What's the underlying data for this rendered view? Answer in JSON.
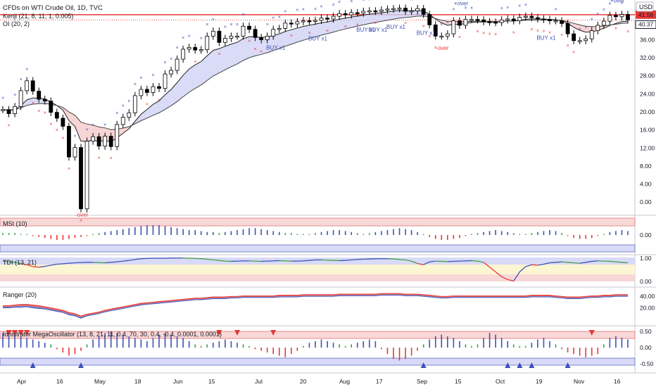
{
  "header": {
    "title": "CFDs on WTI Crude Oil, 1D, TVC",
    "indicator_1": "Kenji (21, 8, 11, 1, 0.005)",
    "indicator_2": "OI (20, 2)",
    "currency": "USD"
  },
  "chart_data": [
    {
      "type": "candlestick",
      "pane": "price",
      "ylim": [
        -2,
        42
      ],
      "y_ticks": [
        "0.00",
        "4.00",
        "8.00",
        "12.00",
        "16.00",
        "20.00",
        "24.00",
        "28.00",
        "32.00",
        "36.00"
      ],
      "y_tick_values": [
        0,
        4,
        8,
        12,
        16,
        20,
        24,
        28,
        32,
        36
      ],
      "last_price": "41.56",
      "second_price": "40.37",
      "x_ticks": [
        "Apr",
        "16",
        "May",
        "18",
        "Jun",
        "15",
        "Jul",
        "20",
        "Aug",
        "17",
        "Sep",
        "15",
        "Oct",
        "19",
        "Nov",
        "16"
      ],
      "close": [
        20.5,
        19.6,
        21.2,
        24.7,
        26.9,
        24.6,
        22.8,
        22.4,
        19.9,
        18.6,
        16.8,
        10.0,
        12.1,
        -1.5,
        13.5,
        14.5,
        12.4,
        14.6,
        12.3,
        17.2,
        18.8,
        19.8,
        23.6,
        25.0,
        24.3,
        25.6,
        25.2,
        28.4,
        29.2,
        31.7,
        33.9,
        34.3,
        33.7,
        33.8,
        36.8,
        37.9,
        35.4,
        36.3,
        36.8,
        36.8,
        39.0,
        38.3,
        36.5,
        36.0,
        36.8,
        38.3,
        38.5,
        39.7,
        39.5,
        40.0,
        40.2,
        40.1,
        40.3,
        40.8,
        40.6,
        41.2,
        41.8,
        41.5,
        42.0,
        41.9,
        42.3,
        42.4,
        42.3,
        42.6,
        42.8,
        42.9,
        43.0,
        42.3,
        42.4,
        42.9,
        41.6,
        39.3,
        36.8,
        36.8,
        37.3,
        40.2,
        39.2,
        40.5,
        40.5,
        40.4,
        40.0,
        39.9,
        39.8,
        40.4,
        40.6,
        40.2,
        41.0,
        41.2,
        40.9,
        40.6,
        40.5,
        40.2,
        40.2,
        39.6,
        37.3,
        35.8,
        35.8,
        36.2,
        38.0,
        39.2,
        40.1,
        41.4,
        41.1,
        41.6,
        40.4
      ]
    },
    {
      "type": "bar",
      "pane": "MSI (10)",
      "y_ticks": [
        "0.00"
      ],
      "values": [
        0.2,
        0.2,
        0.2,
        0.1,
        0.1,
        -0.1,
        -0.2,
        -0.3,
        -0.4,
        -0.5,
        -0.5,
        -0.4,
        -0.3,
        -0.2,
        -0.1,
        0.1,
        0.2,
        0.3,
        0.4,
        0.5,
        0.6,
        0.7,
        0.8,
        0.9,
        1.0,
        1.0,
        1.0,
        0.9,
        0.8,
        0.7,
        0.6,
        0.5,
        0.5,
        0.4,
        0.3,
        0.3,
        0.2,
        0.3,
        0.4,
        0.5,
        0.6,
        0.7,
        0.7,
        0.6,
        0.5,
        0.4,
        0.3,
        0.2,
        0.2,
        0.1,
        0.1,
        0.1,
        0.2,
        0.3,
        0.4,
        0.5,
        0.5,
        0.4,
        0.3,
        0.2,
        0.1,
        0.2,
        0.3,
        0.4,
        0.5,
        0.6,
        0.7,
        0.6,
        0.5,
        0.3,
        0.1,
        -0.2,
        -0.4,
        -0.5,
        -0.5,
        -0.4,
        -0.3,
        -0.1,
        0.1,
        0.2,
        0.3,
        0.4,
        0.5,
        0.4,
        0.3,
        0.2,
        0.1,
        0.1,
        0.2,
        0.3,
        0.4,
        0.5,
        0.4,
        0.2,
        -0.1,
        -0.3,
        -0.4,
        -0.4,
        -0.3,
        -0.1,
        0.1,
        0.3,
        0.4,
        0.5,
        0.4
      ]
    },
    {
      "type": "line",
      "pane": "TDI (13, 21)",
      "y_ticks": [
        "1.00",
        "0.00"
      ],
      "values": [
        0.85,
        0.82,
        0.8,
        0.75,
        0.7,
        0.62,
        0.6,
        0.63,
        0.68,
        0.72,
        0.74,
        0.76,
        0.78,
        0.79,
        0.8,
        0.8,
        0.79,
        0.78,
        0.8,
        0.82,
        0.85,
        0.88,
        0.92,
        0.95,
        0.96,
        0.97,
        0.97,
        0.97,
        0.98,
        0.98,
        0.98,
        0.97,
        0.96,
        0.95,
        0.93,
        0.9,
        0.88,
        0.85,
        0.84,
        0.85,
        0.86,
        0.86,
        0.85,
        0.84,
        0.85,
        0.86,
        0.87,
        0.86,
        0.85,
        0.85,
        0.86,
        0.88,
        0.9,
        0.9,
        0.89,
        0.88,
        0.87,
        0.88,
        0.9,
        0.92,
        0.93,
        0.94,
        0.95,
        0.95,
        0.95,
        0.94,
        0.92,
        0.9,
        0.85,
        0.75,
        0.7,
        0.82,
        0.85,
        0.84,
        0.83,
        0.84,
        0.85,
        0.86,
        0.87,
        0.85,
        0.8,
        0.6,
        0.4,
        0.2,
        0.08,
        0.02,
        0.4,
        0.62,
        0.7,
        0.68,
        0.72,
        0.78,
        0.8,
        0.82,
        0.8,
        0.78,
        0.76,
        0.8,
        0.84,
        0.86,
        0.85,
        0.84,
        0.82,
        0.8,
        0.78
      ]
    },
    {
      "type": "line",
      "pane": "Ranger (20)",
      "y_ticks": [
        "40.00",
        "20.00"
      ],
      "ylim": [
        -5,
        50
      ],
      "series": [
        {
          "values": [
            20,
            20,
            21,
            21,
            22,
            20,
            19,
            18,
            16,
            14,
            12,
            8,
            6,
            2,
            6,
            8,
            10,
            13,
            15,
            17,
            19,
            21,
            23,
            25,
            26,
            27,
            28,
            29,
            30,
            31,
            32,
            33,
            34,
            34,
            35,
            36,
            36,
            36,
            37,
            37,
            38,
            38,
            38,
            38,
            38,
            38,
            39,
            39,
            39,
            39,
            40,
            40,
            40,
            40,
            40,
            40,
            41,
            41,
            41,
            41,
            41,
            41,
            41,
            42,
            42,
            42,
            42,
            41,
            41,
            41,
            40,
            39,
            38,
            37,
            37,
            38,
            38,
            38,
            38,
            38,
            38,
            38,
            38,
            38,
            38,
            38,
            38,
            38,
            39,
            39,
            39,
            39,
            38,
            37,
            36,
            36,
            36,
            37,
            38,
            38,
            39,
            39,
            40,
            40,
            40
          ]
        },
        {
          "values": [
            24,
            24,
            25,
            26,
            26,
            25,
            24,
            22,
            20,
            18,
            16,
            12,
            10,
            6,
            9,
            11,
            13,
            16,
            18,
            20,
            22,
            24,
            26,
            28,
            29,
            30,
            31,
            32,
            33,
            34,
            35,
            36,
            37,
            37,
            38,
            39,
            39,
            39,
            40,
            40,
            41,
            41,
            41,
            41,
            41,
            41,
            42,
            42,
            42,
            42,
            43,
            43,
            43,
            43,
            43,
            43,
            44,
            44,
            44,
            44,
            44,
            44,
            44,
            45,
            45,
            45,
            45,
            44,
            44,
            44,
            43,
            42,
            41,
            40,
            40,
            41,
            41,
            41,
            41,
            41,
            41,
            41,
            41,
            41,
            41,
            41,
            41,
            41,
            42,
            42,
            42,
            42,
            41,
            40,
            39,
            39,
            39,
            40,
            41,
            41,
            42,
            42,
            43,
            43,
            43
          ]
        }
      ]
    },
    {
      "type": "bar",
      "pane": "Idnistrator MegaOscillator (13, 8, 21, 11, 0.4, 70, 30, 0.4, -0.4, 0.0001, 0.0001)",
      "y_ticks": [
        "0.50",
        "0.00",
        "-0.50"
      ],
      "values": [
        0.45,
        0.45,
        0.4,
        0.35,
        0.3,
        0.25,
        0.2,
        0.15,
        0.1,
        -0.05,
        -0.15,
        -0.25,
        -0.2,
        -0.1,
        0.1,
        0.25,
        0.35,
        0.45,
        0.5,
        0.45,
        0.4,
        0.35,
        0.3,
        0.25,
        0.2,
        0.3,
        0.4,
        0.45,
        0.4,
        0.35,
        0.3,
        0.2,
        0.1,
        0.05,
        0.1,
        0.15,
        0.2,
        0.25,
        0.2,
        0.15,
        0.1,
        0.05,
        -0.05,
        -0.1,
        -0.15,
        -0.2,
        -0.25,
        -0.3,
        -0.2,
        -0.1,
        0.05,
        0.15,
        0.2,
        0.25,
        0.2,
        0.15,
        0.1,
        0.05,
        0.1,
        0.15,
        0.2,
        0.25,
        0.2,
        -0.05,
        -0.2,
        -0.35,
        -0.4,
        -0.35,
        -0.25,
        -0.1,
        0.1,
        0.25,
        0.35,
        0.4,
        0.35,
        0.3,
        0.2,
        0.1,
        0.05,
        0.1,
        0.3,
        0.45,
        0.4,
        0.3,
        0.2,
        0.1,
        0.05,
        0.05,
        0.15,
        0.25,
        0.3,
        0.2,
        0.1,
        -0.05,
        -0.15,
        -0.2,
        -0.25,
        -0.3,
        -0.25,
        -0.2,
        0.1,
        0.3,
        0.35,
        0.3,
        0.25
      ]
    }
  ],
  "signals": {
    "buy_label": "BUY x1",
    "over_label": "-over",
    "plus_over_label": "+over"
  }
}
